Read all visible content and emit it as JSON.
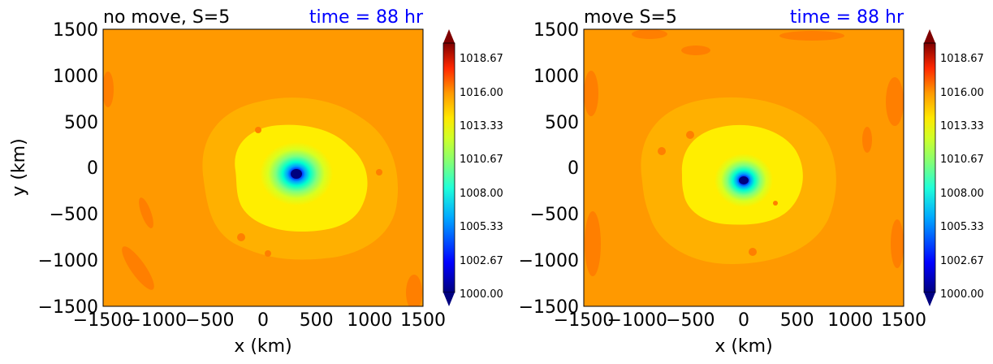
{
  "chart_data": [
    {
      "type": "heatmap",
      "title_left": "no move, S=5",
      "title_right": "time = 88 hr",
      "xlabel": "x (km)",
      "ylabel": "y (km)",
      "xlim": [
        -1500,
        1500
      ],
      "ylim": [
        -1500,
        1500
      ],
      "xticks": [
        "−1500",
        "−1000",
        "−500",
        "0",
        "500",
        "1000",
        "1500"
      ],
      "yticks": [
        "1500",
        "1000",
        "500",
        "0",
        "−500",
        "−1000",
        "−1500"
      ],
      "center": {
        "x": 300,
        "y": -70
      },
      "center_value": 1000.5,
      "colorbar_ticks": [
        "1018.67",
        "1016.00",
        "1013.33",
        "1010.67",
        "1008.00",
        "1005.33",
        "1002.67",
        "1000.00"
      ],
      "colorbar_range": [
        1000,
        1020
      ]
    },
    {
      "type": "heatmap",
      "title_left": "move S=5",
      "title_right": "time = 88 hr",
      "xlabel": "x (km)",
      "ylabel": "",
      "xlim": [
        -1500,
        1500
      ],
      "ylim": [
        -1500,
        1500
      ],
      "xticks": [
        "−1500",
        "−1000",
        "−500",
        "0",
        "500",
        "1000",
        "1500"
      ],
      "yticks": [
        "1500",
        "1000",
        "500",
        "0",
        "−500",
        "−1000",
        "−1500"
      ],
      "center": {
        "x": -20,
        "y": -140
      },
      "center_value": 1001,
      "colorbar_ticks": [
        "1018.67",
        "1016.00",
        "1013.33",
        "1010.67",
        "1008.00",
        "1005.33",
        "1002.67",
        "1000.00"
      ],
      "colorbar_range": [
        1000,
        1020
      ]
    }
  ],
  "colors": {
    "background_field": "#ff9900",
    "title_right": "#0000ff",
    "axis": "#000000"
  }
}
